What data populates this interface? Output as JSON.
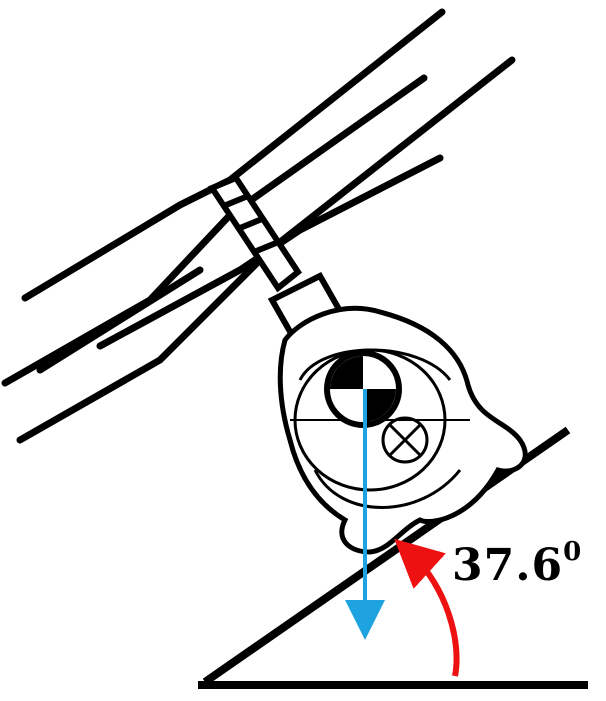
{
  "angle": {
    "value": "37.6",
    "unit": "0"
  },
  "colors": {
    "ink": "#000000",
    "gravity_arrow": "#1ea3e0",
    "angle_arrow": "#ee1111",
    "background": "#ffffff"
  },
  "icons": [
    "helicopter-drawing",
    "center-of-gravity-icon",
    "gravity-vector-arrow",
    "angle-arc-arrow"
  ]
}
